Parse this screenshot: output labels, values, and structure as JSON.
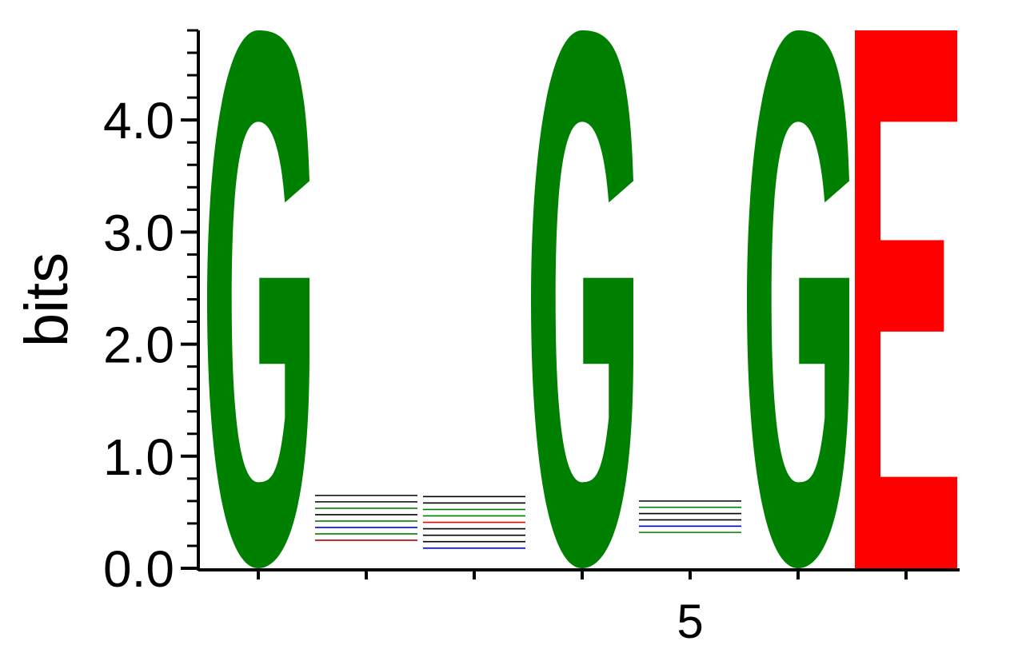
{
  "chart_data": {
    "type": "sequence-logo",
    "ylabel": "bits",
    "ylim": [
      0,
      4.8
    ],
    "yticks": [
      {
        "value": 0,
        "label": "0.0"
      },
      {
        "value": 1,
        "label": "1.0"
      },
      {
        "value": 2,
        "label": "2.0"
      },
      {
        "value": 3,
        "label": "3.0"
      },
      {
        "value": 4,
        "label": "4.0"
      }
    ],
    "ytick_minor_step": 0.2,
    "xticks": [
      {
        "position": 1,
        "label": ""
      },
      {
        "position": 2,
        "label": ""
      },
      {
        "position": 3,
        "label": ""
      },
      {
        "position": 4,
        "label": ""
      },
      {
        "position": 5,
        "label": "5"
      },
      {
        "position": 6,
        "label": ""
      },
      {
        "position": 7,
        "label": ""
      }
    ],
    "colors": {
      "G": "#008000",
      "E": "#ff0000",
      "axis": "#000000"
    },
    "positions": [
      {
        "position": 1,
        "letters": [
          {
            "letter": "G",
            "bits": 4.8
          }
        ]
      },
      {
        "position": 2,
        "letters": [],
        "min_bits": 0.25,
        "max_bits": 0.65,
        "residue_colors": [
          "#b00000",
          "#008000",
          "#0000ff",
          "#008000",
          "#000000",
          "#008000",
          "#000000",
          "#000000"
        ]
      },
      {
        "position": 3,
        "letters": [],
        "min_bits": 0.18,
        "max_bits": 0.64,
        "residue_colors": [
          "#0000ff",
          "#000000",
          "#000000",
          "#000000",
          "#ff0000",
          "#008000",
          "#008000",
          "#000000",
          "#000000"
        ]
      },
      {
        "position": 4,
        "letters": [
          {
            "letter": "G",
            "bits": 4.8
          }
        ]
      },
      {
        "position": 5,
        "letters": [],
        "min_bits": 0.32,
        "max_bits": 0.6,
        "residue_colors": [
          "#008000",
          "#0000ff",
          "#000000",
          "#000000",
          "#008000",
          "#000000"
        ]
      },
      {
        "position": 6,
        "letters": [
          {
            "letter": "G",
            "bits": 4.8
          }
        ]
      },
      {
        "position": 7,
        "letters": [
          {
            "letter": "E",
            "bits": 4.8
          }
        ]
      }
    ]
  }
}
